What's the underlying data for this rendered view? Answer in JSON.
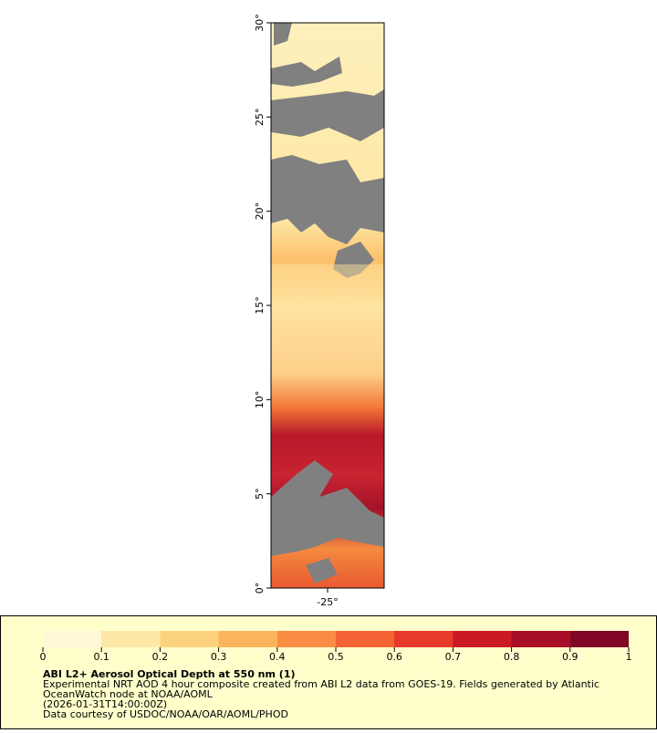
{
  "chart_data": {
    "type": "map",
    "title": "ABI L2+ Aerosol Optical Depth at 550 nm (1)",
    "notes": [
      "Experimental NRT AOD 4 hour composite created from ABI L2 data from GOES-19. Fields generated by Atlantic",
      "OceanWatch node at NOAA/AOML",
      "(2026-01-31T14:00:00Z)",
      "Data courtesy of USDOC/NOAA/OAR/AOML/PHOD"
    ],
    "xlim": [
      -28,
      -22
    ],
    "ylim": [
      0,
      30
    ],
    "xticks": [
      {
        "value": -25,
        "label": "-25°"
      }
    ],
    "yticks": [
      {
        "value": 0,
        "label": "0°"
      },
      {
        "value": 5,
        "label": "5°"
      },
      {
        "value": 10,
        "label": "10°"
      },
      {
        "value": 15,
        "label": "15°"
      },
      {
        "value": 20,
        "label": "20°"
      },
      {
        "value": 25,
        "label": "25°"
      },
      {
        "value": 30,
        "label": "30°"
      }
    ],
    "colorbar": {
      "lim": [
        0,
        1
      ],
      "ticks": [
        0,
        0.1,
        0.2,
        0.3,
        0.4,
        0.5,
        0.6,
        0.7,
        0.8,
        0.9,
        1
      ],
      "colors": [
        "#fff7d8",
        "#fee8a8",
        "#fdd27e",
        "#fcb55c",
        "#fb8c44",
        "#f46334",
        "#e63a2a",
        "#cc1a24",
        "#a80e26",
        "#800826"
      ]
    }
  }
}
